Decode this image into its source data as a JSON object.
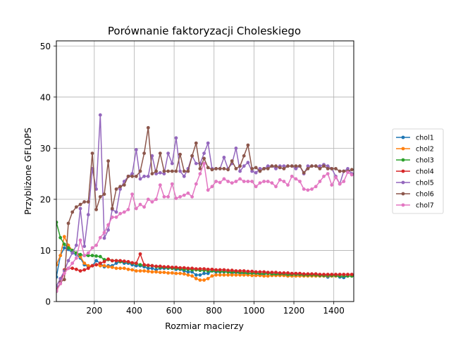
{
  "chart_data": {
    "type": "line",
    "title": "Porównanie faktoryzacji Choleskiego",
    "xlabel": "Rozmiar macierzy",
    "ylabel": "Przybliżone GFLOPS",
    "xlim": [
      10,
      1500
    ],
    "ylim": [
      0,
      51
    ],
    "xticks": [
      200,
      400,
      600,
      800,
      1000,
      1200,
      1400
    ],
    "yticks": [
      0,
      10,
      20,
      30,
      40,
      50
    ],
    "grid": true,
    "legend_position": "outside-right",
    "x": [
      10,
      30,
      50,
      70,
      90,
      110,
      130,
      150,
      170,
      190,
      210,
      230,
      250,
      270,
      290,
      310,
      330,
      350,
      370,
      390,
      410,
      430,
      450,
      470,
      490,
      510,
      530,
      550,
      570,
      590,
      610,
      630,
      650,
      670,
      690,
      710,
      730,
      750,
      770,
      790,
      810,
      830,
      850,
      870,
      890,
      910,
      930,
      950,
      970,
      990,
      1010,
      1030,
      1050,
      1070,
      1090,
      1110,
      1130,
      1150,
      1170,
      1190,
      1210,
      1230,
      1250,
      1270,
      1290,
      1310,
      1330,
      1350,
      1370,
      1390,
      1410,
      1430,
      1450,
      1470,
      1490
    ],
    "series": [
      {
        "name": "chol1",
        "color": "#1f77b4",
        "values": [
          4.8,
          9,
          10.5,
          10.2,
          9.5,
          9.2,
          8.5,
          7.2,
          6.8,
          7,
          8,
          7.5,
          6.8,
          7,
          7,
          7.5,
          7.8,
          7.5,
          7.5,
          7.2,
          7,
          7,
          6.8,
          6.5,
          6.5,
          6.2,
          6.5,
          6.5,
          6.5,
          6.5,
          6.3,
          6.3,
          6,
          5.8,
          5.8,
          5.2,
          5.2,
          5.5,
          5.5,
          6,
          5.8,
          5.8,
          5.8,
          5.8,
          5.5,
          5.7,
          5.5,
          5.5,
          5.5,
          5.5,
          5.5,
          5.3,
          5.3,
          5.5,
          5.3,
          5.3,
          5.3,
          5.3,
          5,
          5.3,
          5.3,
          5.2,
          5.2,
          5.2,
          5.2,
          5,
          5,
          5,
          4.8,
          5,
          5,
          4.8,
          4.7,
          5,
          5
        ]
      },
      {
        "name": "chol2",
        "color": "#ff7f0e",
        "values": [
          7.2,
          9,
          12.7,
          11,
          10,
          9.5,
          8.8,
          7.5,
          7,
          7,
          7.2,
          7,
          7,
          6.8,
          6.7,
          6.5,
          6.5,
          6.5,
          6.3,
          6.2,
          6,
          6,
          6,
          5.9,
          5.8,
          5.8,
          5.7,
          5.7,
          5.6,
          5.6,
          5.5,
          5.5,
          5.4,
          5.2,
          5,
          4.5,
          4.2,
          4.2,
          4.5,
          5,
          5.2,
          5.2,
          5.2,
          5.2,
          5.2,
          5.2,
          5.2,
          5.2,
          5.2,
          5.1,
          5.1,
          5.1,
          5,
          5,
          5.1,
          5.1,
          5.1,
          5.1,
          5,
          5,
          5,
          5,
          5,
          5,
          5,
          5,
          5,
          5,
          5,
          5,
          5,
          5,
          5,
          5,
          5
        ]
      },
      {
        "name": "chol3",
        "color": "#2ca02c",
        "values": [
          15.5,
          12.5,
          11.2,
          10.5,
          10,
          9.5,
          9.2,
          9,
          9,
          9,
          8.9,
          8.8,
          8.2,
          8.2,
          8,
          8,
          7.8,
          7.8,
          7.7,
          7.5,
          7.4,
          7.2,
          7.1,
          7,
          7,
          6.8,
          6.7,
          6.7,
          6.6,
          6.5,
          6.5,
          6.4,
          6.3,
          6.3,
          6.2,
          6.2,
          6.1,
          6.1,
          6,
          6,
          6,
          5.9,
          5.9,
          5.8,
          5.8,
          5.8,
          5.7,
          5.7,
          5.6,
          5.6,
          5.6,
          5.5,
          5.5,
          5.5,
          5.4,
          5.4,
          5.4,
          5.4,
          5.3,
          5.3,
          5.3,
          5.3,
          5.2,
          5.2,
          5.2,
          5.2,
          5.1,
          5.1,
          5.1,
          5.1,
          5.1,
          5,
          5,
          5,
          5
        ]
      },
      {
        "name": "chol4",
        "color": "#d62728",
        "values": [
          2.3,
          3.5,
          6.2,
          6.5,
          6.5,
          6.3,
          6,
          6.2,
          6.5,
          7,
          7.2,
          7.5,
          7.8,
          8.3,
          8,
          8,
          8,
          7.9,
          7.8,
          7.6,
          7.5,
          9.3,
          7.2,
          7.1,
          7,
          6.9,
          6.9,
          6.8,
          6.8,
          6.7,
          6.7,
          6.6,
          6.6,
          6.5,
          6.5,
          6.4,
          6.4,
          6.4,
          6.3,
          6.3,
          6.2,
          6.2,
          6.2,
          6.1,
          6.1,
          6,
          6,
          6,
          5.9,
          5.9,
          5.8,
          5.8,
          5.8,
          5.7,
          5.7,
          5.7,
          5.6,
          5.6,
          5.6,
          5.5,
          5.5,
          5.5,
          5.4,
          5.4,
          5.4,
          5.4,
          5.3,
          5.3,
          5.3,
          5.3,
          5.3,
          5.3,
          5.3,
          5.3,
          5.3
        ]
      },
      {
        "name": "chol5",
        "color": "#9467bd",
        "values": [
          3,
          4.5,
          6,
          8,
          9.5,
          11,
          18.2,
          10.8,
          17,
          26,
          22,
          36.5,
          12.4,
          14,
          18,
          17.5,
          22,
          23.5,
          24.5,
          25,
          29.7,
          24,
          24.5,
          24.5,
          28.5,
          25,
          25.2,
          25,
          29,
          27,
          32,
          25.5,
          24.5,
          26,
          28.5,
          27,
          27,
          29,
          31,
          26,
          26,
          26,
          28.2,
          26,
          27,
          30,
          25.5,
          26.5,
          27.2,
          25.5,
          25.2,
          26,
          26,
          26.5,
          26.5,
          26,
          26.5,
          26.5,
          26.5,
          26.5,
          26,
          26.5,
          25,
          26.5,
          26.5,
          26.5,
          26.5,
          26.8,
          26.5,
          26,
          24.5,
          23,
          25.5,
          26,
          25
        ]
      },
      {
        "name": "chol6",
        "color": "#8c564b",
        "values": [
          2,
          3.8,
          4.3,
          15.3,
          17.5,
          18.5,
          19,
          19.5,
          19.5,
          29,
          18,
          20.5,
          21,
          27.5,
          18.2,
          22,
          22.5,
          22.8,
          24.5,
          24.5,
          24.5,
          25.5,
          29,
          34,
          25,
          25.5,
          29,
          25.5,
          25.5,
          25.5,
          25.5,
          28.8,
          25.5,
          25.5,
          28.5,
          31,
          26,
          28,
          26.2,
          25.8,
          26,
          26,
          26,
          25.8,
          27.5,
          26,
          26.5,
          28.5,
          30.6,
          26,
          26.2,
          25.5,
          26,
          26,
          26.5,
          26.5,
          26.2,
          26,
          26.5,
          26.5,
          26.5,
          26.5,
          25.2,
          26,
          26.5,
          26.5,
          26,
          26.5,
          26,
          26,
          26,
          25.5,
          25.5,
          25.5,
          25.8
        ]
      },
      {
        "name": "chol7",
        "color": "#e377c2",
        "values": [
          2,
          3.5,
          5.5,
          6.5,
          7.5,
          8.5,
          12,
          9,
          9.5,
          10.5,
          11,
          12.5,
          13.5,
          15,
          16.5,
          16.5,
          17.2,
          17.5,
          18,
          21,
          18.2,
          19,
          18.5,
          20,
          19.5,
          20,
          22.8,
          20.5,
          20.5,
          23,
          20.2,
          20.5,
          20.8,
          21.2,
          20.5,
          23,
          25,
          27,
          21.8,
          22.5,
          23.5,
          23.3,
          24,
          23.5,
          23.2,
          23.5,
          24,
          23.5,
          23.5,
          23.5,
          22.5,
          23.2,
          23.5,
          23.5,
          23.2,
          22.5,
          23.8,
          23.5,
          22.8,
          24.5,
          24,
          23.5,
          22,
          21.8,
          22,
          22.5,
          23.5,
          24.5,
          25,
          22.8,
          24.3,
          23,
          23.5,
          25.3,
          24.8
        ]
      }
    ]
  }
}
